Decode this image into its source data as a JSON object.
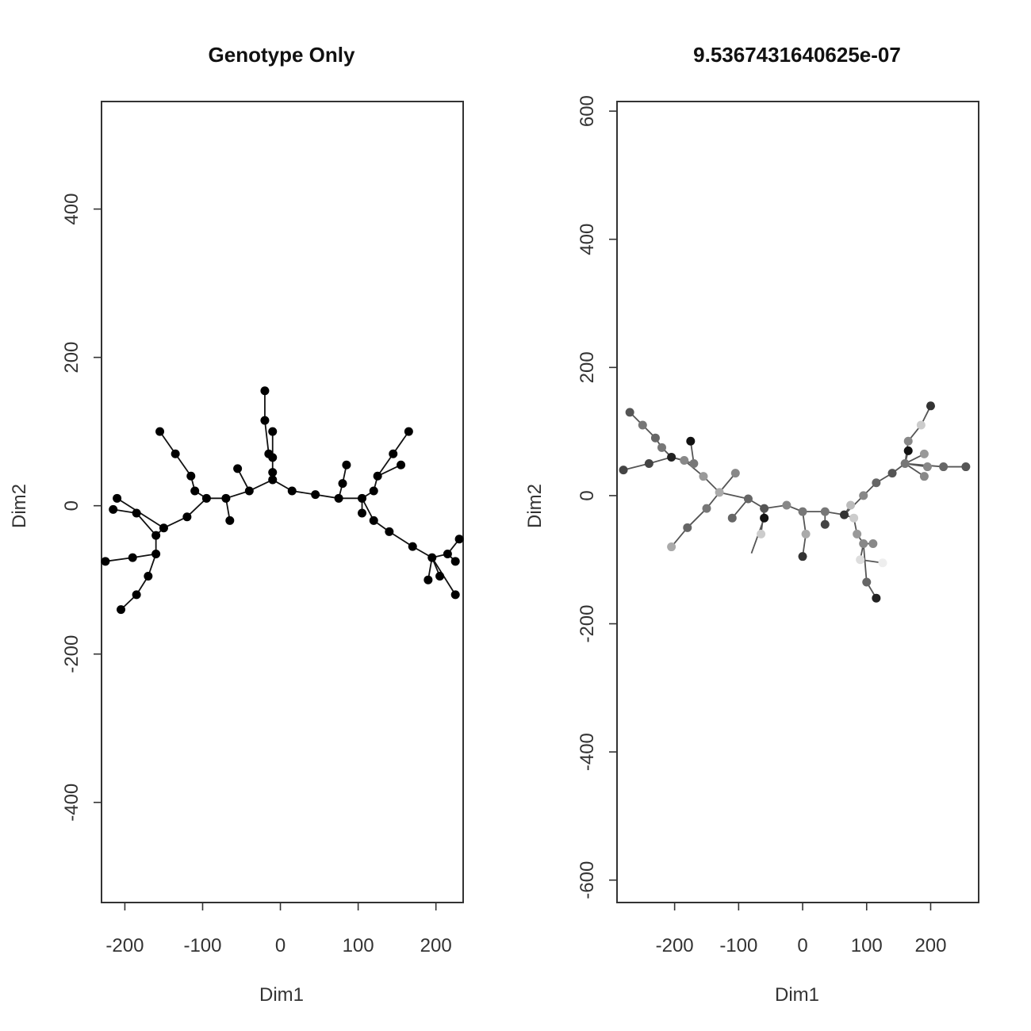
{
  "chart_data": [
    {
      "type": "network",
      "title": "Genotype Only",
      "xlabel": "Dim1",
      "ylabel": "Dim2",
      "xlim": [
        -230,
        235
      ],
      "ylim": [
        -535,
        545
      ],
      "xticks": [
        -200,
        -100,
        0,
        100,
        200
      ],
      "yticks": [
        -400,
        -200,
        0,
        200,
        400
      ],
      "node_color": "#000000",
      "edge_color": "#111111",
      "nodes": [
        [
          -10,
          35
        ],
        [
          -20,
          155
        ],
        [
          -20,
          115
        ],
        [
          -10,
          100
        ],
        [
          -15,
          70
        ],
        [
          -10,
          65
        ],
        [
          -10,
          45
        ],
        [
          -55,
          50
        ],
        [
          -40,
          20
        ],
        [
          15,
          20
        ],
        [
          45,
          15
        ],
        [
          75,
          10
        ],
        [
          80,
          30
        ],
        [
          85,
          55
        ],
        [
          105,
          10
        ],
        [
          105,
          -10
        ],
        [
          120,
          20
        ],
        [
          125,
          40
        ],
        [
          145,
          70
        ],
        [
          155,
          55
        ],
        [
          165,
          100
        ],
        [
          120,
          -20
        ],
        [
          140,
          -35
        ],
        [
          170,
          -55
        ],
        [
          195,
          -70
        ],
        [
          190,
          -100
        ],
        [
          205,
          -95
        ],
        [
          215,
          -65
        ],
        [
          225,
          -75
        ],
        [
          230,
          -45
        ],
        [
          225,
          -120
        ],
        [
          -70,
          10
        ],
        [
          -65,
          -20
        ],
        [
          -95,
          10
        ],
        [
          -110,
          20
        ],
        [
          -115,
          40
        ],
        [
          -135,
          70
        ],
        [
          -155,
          100
        ],
        [
          -120,
          -15
        ],
        [
          -150,
          -30
        ],
        [
          -160,
          -40
        ],
        [
          -185,
          -10
        ],
        [
          -210,
          10
        ],
        [
          -215,
          -5
        ],
        [
          -160,
          -65
        ],
        [
          -190,
          -70
        ],
        [
          -225,
          -75
        ],
        [
          -170,
          -95
        ],
        [
          -185,
          -120
        ],
        [
          -205,
          -140
        ]
      ],
      "edges": [
        [
          0,
          6
        ],
        [
          6,
          5
        ],
        [
          5,
          4
        ],
        [
          4,
          2
        ],
        [
          2,
          1
        ],
        [
          5,
          3
        ],
        [
          0,
          8
        ],
        [
          8,
          7
        ],
        [
          8,
          31
        ],
        [
          31,
          32
        ],
        [
          31,
          33
        ],
        [
          33,
          34
        ],
        [
          34,
          35
        ],
        [
          35,
          36
        ],
        [
          36,
          37
        ],
        [
          33,
          38
        ],
        [
          38,
          39
        ],
        [
          39,
          40
        ],
        [
          40,
          41
        ],
        [
          41,
          43
        ],
        [
          39,
          42
        ],
        [
          40,
          44
        ],
        [
          44,
          45
        ],
        [
          45,
          46
        ],
        [
          44,
          47
        ],
        [
          47,
          48
        ],
        [
          48,
          49
        ],
        [
          0,
          9
        ],
        [
          9,
          10
        ],
        [
          10,
          11
        ],
        [
          11,
          12
        ],
        [
          12,
          13
        ],
        [
          11,
          14
        ],
        [
          14,
          15
        ],
        [
          14,
          16
        ],
        [
          16,
          17
        ],
        [
          17,
          18
        ],
        [
          18,
          20
        ],
        [
          17,
          19
        ],
        [
          14,
          21
        ],
        [
          21,
          22
        ],
        [
          22,
          23
        ],
        [
          23,
          24
        ],
        [
          24,
          25
        ],
        [
          24,
          26
        ],
        [
          24,
          27
        ],
        [
          27,
          28
        ],
        [
          27,
          29
        ],
        [
          24,
          30
        ]
      ]
    },
    {
      "type": "network",
      "title": "9.5367431640625e-07",
      "xlabel": "Dim1",
      "ylabel": "Dim2",
      "xlim": [
        -290,
        275
      ],
      "ylim": [
        -635,
        615
      ],
      "xticks": [
        -200,
        -100,
        0,
        100,
        200
      ],
      "yticks": [
        -600,
        -400,
        -200,
        0,
        200,
        400,
        600
      ],
      "edge_color": "#555555",
      "nodes": [
        [
          -270,
          130,
          "#555555"
        ],
        [
          -250,
          110,
          "#777777"
        ],
        [
          -230,
          90,
          "#666666"
        ],
        [
          -220,
          75,
          "#777777"
        ],
        [
          -205,
          60,
          "#222222"
        ],
        [
          -280,
          40,
          "#444444"
        ],
        [
          -240,
          50,
          "#444444"
        ],
        [
          -175,
          85,
          "#111111"
        ],
        [
          -185,
          55,
          "#888888"
        ],
        [
          -155,
          30,
          "#999999"
        ],
        [
          -130,
          5,
          "#aaaaaa"
        ],
        [
          -150,
          -20,
          "#777777"
        ],
        [
          -180,
          -50,
          "#666666"
        ],
        [
          -205,
          -80,
          "#aaaaaa"
        ],
        [
          -105,
          35,
          "#888888"
        ],
        [
          -110,
          -35,
          "#666666"
        ],
        [
          -85,
          -5,
          "#666666"
        ],
        [
          -60,
          -20,
          "#555555"
        ],
        [
          -60,
          -35,
          "#111111"
        ],
        [
          -65,
          -60,
          "#cccccc"
        ],
        [
          -25,
          -15,
          "#888888"
        ],
        [
          0,
          -25,
          "#777777"
        ],
        [
          5,
          -60,
          "#aaaaaa"
        ],
        [
          0,
          -95,
          "#333333"
        ],
        [
          35,
          -25,
          "#777777"
        ],
        [
          35,
          -45,
          "#444444"
        ],
        [
          65,
          -30,
          "#333333"
        ],
        [
          75,
          -15,
          "#bbbbbb"
        ],
        [
          80,
          -35,
          "#cccccc"
        ],
        [
          85,
          -60,
          "#999999"
        ],
        [
          95,
          -75,
          "#888888"
        ],
        [
          110,
          -75,
          "#888888"
        ],
        [
          90,
          -100,
          "#dddddd"
        ],
        [
          125,
          -105,
          "#eeeeee"
        ],
        [
          100,
          -135,
          "#666666"
        ],
        [
          115,
          -160,
          "#222222"
        ],
        [
          95,
          0,
          "#888888"
        ],
        [
          115,
          20,
          "#666666"
        ],
        [
          140,
          35,
          "#555555"
        ],
        [
          160,
          50,
          "#777777"
        ],
        [
          165,
          70,
          "#111111"
        ],
        [
          165,
          85,
          "#888888"
        ],
        [
          185,
          110,
          "#cccccc"
        ],
        [
          200,
          140,
          "#333333"
        ],
        [
          190,
          65,
          "#999999"
        ],
        [
          195,
          45,
          "#888888"
        ],
        [
          190,
          30,
          "#888888"
        ],
        [
          220,
          45,
          "#666666"
        ],
        [
          255,
          45,
          "#555555"
        ],
        [
          -170,
          50,
          "#777777"
        ]
      ],
      "edges": [
        [
          0,
          1
        ],
        [
          1,
          2
        ],
        [
          2,
          3
        ],
        [
          3,
          4
        ],
        [
          4,
          6
        ],
        [
          6,
          5
        ],
        [
          4,
          49
        ],
        [
          49,
          7
        ],
        [
          4,
          8
        ],
        [
          8,
          9
        ],
        [
          9,
          10
        ],
        [
          10,
          11
        ],
        [
          11,
          12
        ],
        [
          12,
          13
        ],
        [
          10,
          14
        ],
        [
          10,
          16
        ],
        [
          16,
          15
        ],
        [
          16,
          17
        ],
        [
          17,
          18
        ],
        [
          17,
          19
        ],
        [
          17,
          20
        ],
        [
          20,
          21
        ],
        [
          21,
          22
        ],
        [
          22,
          23
        ],
        [
          21,
          24
        ],
        [
          24,
          25
        ],
        [
          24,
          26
        ],
        [
          26,
          27
        ],
        [
          26,
          28
        ],
        [
          28,
          29
        ],
        [
          29,
          30
        ],
        [
          30,
          31
        ],
        [
          30,
          32
        ],
        [
          32,
          33
        ],
        [
          30,
          34
        ],
        [
          34,
          35
        ],
        [
          26,
          36
        ],
        [
          36,
          37
        ],
        [
          37,
          38
        ],
        [
          38,
          39
        ],
        [
          39,
          40
        ],
        [
          39,
          41
        ],
        [
          41,
          42
        ],
        [
          42,
          43
        ],
        [
          39,
          44
        ],
        [
          39,
          45
        ],
        [
          39,
          46
        ],
        [
          39,
          47
        ],
        [
          47,
          48
        ]
      ],
      "extra_segments": [
        [
          [
            -60,
            -35
          ],
          [
            -80,
            -90
          ]
        ]
      ]
    }
  ]
}
